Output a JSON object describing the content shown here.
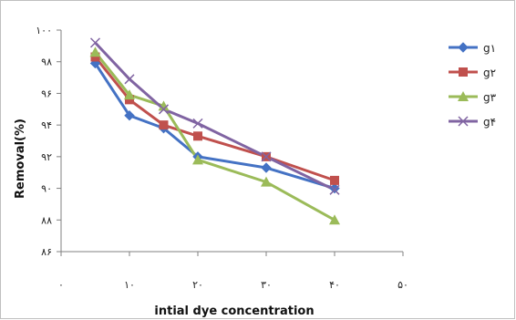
{
  "chart_data": {
    "type": "line",
    "xlabel": "intial dye concentration",
    "ylabel": "Removal(%)",
    "xlim": [
      0,
      50
    ],
    "ylim": [
      86,
      100
    ],
    "x_ticks": [
      0,
      10,
      20,
      30,
      40,
      50
    ],
    "x_tick_labels": [
      "۰",
      "۱۰",
      "۲۰",
      "۳۰",
      "۴۰",
      "۵۰"
    ],
    "y_ticks": [
      86,
      88,
      90,
      92,
      94,
      96,
      98,
      100
    ],
    "y_tick_labels": [
      "۸۶",
      "۸۸",
      "۹۰",
      "۹۲",
      "۹۴",
      "۹۶",
      "۹۸",
      "۱۰۰"
    ],
    "grid": false,
    "legend_position": "top-right",
    "series": [
      {
        "name": "g۱",
        "color": "#4472C4",
        "marker": "diamond",
        "x": [
          5,
          10,
          15,
          20,
          30,
          40
        ],
        "y": [
          97.9,
          94.6,
          93.8,
          92.0,
          91.3,
          90.0
        ]
      },
      {
        "name": "g۲",
        "color": "#C0504D",
        "marker": "square",
        "x": [
          5,
          10,
          15,
          20,
          30,
          40
        ],
        "y": [
          98.3,
          95.6,
          94.0,
          93.3,
          92.0,
          90.5
        ]
      },
      {
        "name": "g۳",
        "color": "#9BBB59",
        "marker": "triangle",
        "x": [
          5,
          10,
          15,
          20,
          30,
          40
        ],
        "y": [
          98.6,
          95.9,
          95.2,
          91.8,
          90.4,
          88.0
        ]
      },
      {
        "name": "g۴",
        "color": "#8064A2",
        "marker": "x",
        "x": [
          5,
          10,
          15,
          20,
          30,
          40
        ],
        "y": [
          99.2,
          96.9,
          95.0,
          94.1,
          92.0,
          89.9
        ]
      }
    ]
  }
}
